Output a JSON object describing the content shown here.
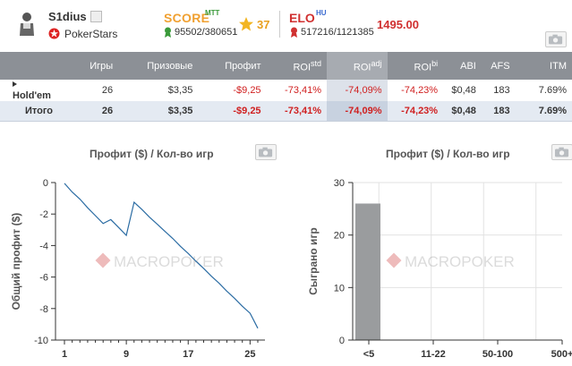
{
  "player": {
    "name": "S1dius",
    "room": "PokerStars"
  },
  "score": {
    "label": "SCORE",
    "sup": "MTT",
    "rank": "95502/380651",
    "stars": "37"
  },
  "elo": {
    "label": "ELO",
    "sup": "HU",
    "rank": "517216/1121385",
    "value": "1495.00"
  },
  "table": {
    "headers": [
      {
        "label": "Игры",
        "sup": ""
      },
      {
        "label": "Призовые",
        "sup": ""
      },
      {
        "label": "Профит",
        "sup": ""
      },
      {
        "label": "ROI",
        "sup": "std"
      },
      {
        "label": "ROI",
        "sup": "adj"
      },
      {
        "label": "ROI",
        "sup": "bi"
      },
      {
        "label": "ABI",
        "sup": ""
      },
      {
        "label": "AFS",
        "sup": ""
      },
      {
        "label": "ITM",
        "sup": ""
      }
    ],
    "rows": [
      {
        "name": "Hold'em",
        "cells": [
          "26",
          "$3,35",
          "-$9,25",
          "-73,41%",
          "-74,09%",
          "-74,23%",
          "$0,48",
          "183",
          "7.69%"
        ]
      },
      {
        "name": "Итого",
        "cells": [
          "26",
          "$3,35",
          "-$9,25",
          "-73,41%",
          "-74,09%",
          "-74,23%",
          "$0,48",
          "183",
          "7.69%"
        ]
      }
    ]
  },
  "charts": {
    "profit": {
      "title": "Профит ($) / Кол-во игр",
      "ylabel": "Общий профит ($)",
      "watermark": "MACROPOKER"
    },
    "games": {
      "title": "Профит ($) / Кол-во игр",
      "ylabel": "Сыграно игр",
      "watermark": "MACROPOKER"
    }
  },
  "chart_data": [
    {
      "type": "line",
      "title": "Профит ($) / Кол-во игр",
      "xlabel": "",
      "ylabel": "Общий профит ($)",
      "xlim": [
        1,
        26
      ],
      "ylim": [
        -10,
        0
      ],
      "xticks": [
        1,
        9,
        17,
        25
      ],
      "yticks": [
        0,
        -2,
        -4,
        -6,
        -8,
        -10
      ],
      "x": [
        1,
        2,
        3,
        4,
        5,
        6,
        7,
        8,
        9,
        10,
        11,
        12,
        13,
        14,
        15,
        16,
        17,
        18,
        19,
        20,
        21,
        22,
        23,
        24,
        25,
        26
      ],
      "y": [
        -0.05,
        -0.6,
        -1.05,
        -1.6,
        -2.1,
        -2.6,
        -2.35,
        -2.85,
        -3.35,
        -1.25,
        -1.7,
        -2.2,
        -2.65,
        -3.1,
        -3.55,
        -4.05,
        -4.5,
        -5.0,
        -5.45,
        -5.95,
        -6.4,
        -6.9,
        -7.35,
        -7.85,
        -8.3,
        -9.25
      ],
      "grid": false,
      "color": "#2b6ca3"
    },
    {
      "type": "bar",
      "title": "Профит ($) / Кол-во игр",
      "xlabel": "",
      "ylabel": "Сыграно игр",
      "categories": [
        "<5",
        "11-22",
        "50-100",
        "500+"
      ],
      "values": [
        26,
        0,
        0,
        0
      ],
      "ylim": [
        0,
        30
      ],
      "yticks": [
        0,
        10,
        20,
        30
      ],
      "grid": true,
      "color": "#9a9c9e"
    }
  ]
}
